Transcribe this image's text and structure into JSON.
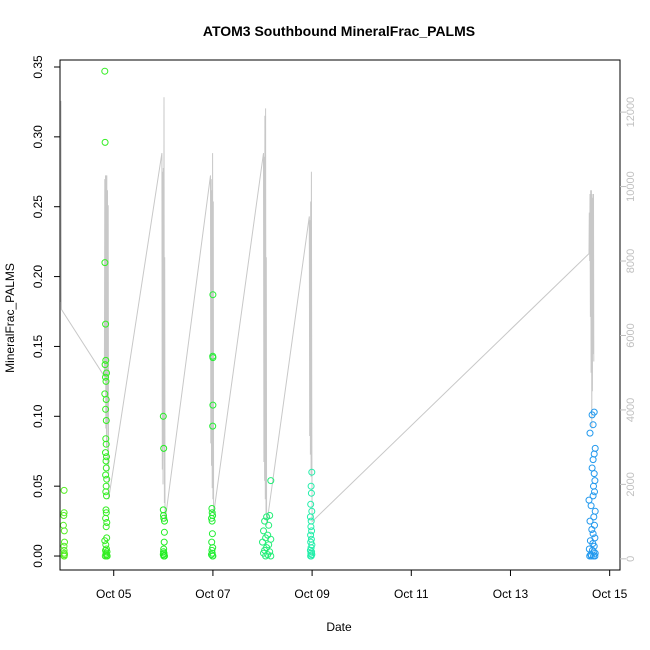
{
  "chart_data": {
    "type": "scatter",
    "title": "ATOM3 Southbound MineralFrac_PALMS",
    "xlabel": "Date",
    "ylabel": "MineralFrac_PALMS",
    "x_ticks": [
      "Oct 05",
      "Oct 07",
      "Oct 09",
      "Oct 11",
      "Oct 13",
      "Oct 15"
    ],
    "x_range": [
      "Oct 03 22:00",
      "Oct 15 05:00"
    ],
    "y_ticks": [
      0.0,
      0.05,
      0.1,
      0.15,
      0.2,
      0.25,
      0.3,
      0.35
    ],
    "y_tick_labels": [
      "0.00",
      "0.05",
      "0.10",
      "0.15",
      "0.20",
      "0.25",
      "0.30",
      "0.35"
    ],
    "ylim": [
      -0.01,
      0.355
    ],
    "y2_ticks": [
      0,
      2000,
      4000,
      6000,
      8000,
      10000,
      12000
    ],
    "y2_tick_labels": [
      "0",
      "2000",
      "4000",
      "6000",
      "8000",
      "10000",
      "12000"
    ],
    "y2lim": [
      -300,
      13400
    ],
    "y2_color": "#c0c0c0",
    "grid": false,
    "series": [
      {
        "color": "#55ee22",
        "points": [
          [
            "Oct 04 00:00",
            0.047
          ],
          [
            "Oct 04 00:00",
            0.031
          ],
          [
            "Oct 03 23:50",
            0.029
          ],
          [
            "Oct 03 23:40",
            0.022
          ],
          [
            "Oct 04 00:05",
            0.018
          ],
          [
            "Oct 04 00:10",
            0.01
          ],
          [
            "Oct 03 23:55",
            0.007
          ],
          [
            "Oct 04 00:00",
            0.004
          ],
          [
            "Oct 04 00:05",
            0.002
          ],
          [
            "Oct 04 00:10",
            0.001
          ],
          [
            "Oct 04 00:02",
            0.0
          ],
          [
            "Oct 03 23:58",
            0.0
          ]
        ]
      },
      {
        "color": "#33ee22",
        "points": [
          [
            "Oct 04 19:40",
            0.347
          ],
          [
            "Oct 04 19:50",
            0.296
          ],
          [
            "Oct 04 19:45",
            0.21
          ],
          [
            "Oct 04 20:05",
            0.166
          ],
          [
            "Oct 04 19:50",
            0.137
          ],
          [
            "Oct 04 20:10",
            0.14
          ],
          [
            "Oct 04 20:30",
            0.131
          ],
          [
            "Oct 04 20:00",
            0.128
          ],
          [
            "Oct 04 20:15",
            0.125
          ],
          [
            "Oct 04 19:40",
            0.116
          ],
          [
            "Oct 04 20:20",
            0.112
          ],
          [
            "Oct 04 20:05",
            0.105
          ],
          [
            "Oct 04 20:25",
            0.097
          ],
          [
            "Oct 04 20:10",
            0.084
          ],
          [
            "Oct 04 20:20",
            0.08
          ],
          [
            "Oct 04 20:00",
            0.074
          ],
          [
            "Oct 04 20:30",
            0.071
          ],
          [
            "Oct 04 20:15",
            0.068
          ],
          [
            "Oct 04 20:25",
            0.063
          ],
          [
            "Oct 04 20:05",
            0.058
          ],
          [
            "Oct 04 20:35",
            0.055
          ],
          [
            "Oct 04 20:20",
            0.05
          ],
          [
            "Oct 04 20:10",
            0.046
          ],
          [
            "Oct 04 20:30",
            0.043
          ],
          [
            "Oct 04 20:15",
            0.033
          ],
          [
            "Oct 04 20:25",
            0.031
          ],
          [
            "Oct 04 20:05",
            0.027
          ],
          [
            "Oct 04 20:40",
            0.024
          ],
          [
            "Oct 04 20:20",
            0.021
          ],
          [
            "Oct 04 19:40",
            0.011
          ],
          [
            "Oct 04 20:35",
            0.013
          ],
          [
            "Oct 04 20:10",
            0.008
          ],
          [
            "Oct 04 20:30",
            0.005
          ],
          [
            "Oct 04 20:00",
            0.004
          ],
          [
            "Oct 04 20:45",
            0.003
          ],
          [
            "Oct 04 20:15",
            0.002
          ],
          [
            "Oct 04 20:25",
            0.001
          ],
          [
            "Oct 04 19:55",
            0.0
          ],
          [
            "Oct 04 20:35",
            0.0
          ],
          [
            "Oct 04 20:50",
            0.0
          ]
        ]
      },
      {
        "color": "#22ee22",
        "points": [
          [
            "Oct 06 00:00",
            0.1
          ],
          [
            "Oct 06 00:10",
            0.077
          ],
          [
            "Oct 06 00:00",
            0.033
          ],
          [
            "Oct 06 00:05",
            0.029
          ],
          [
            "Oct 06 00:15",
            0.027
          ],
          [
            "Oct 06 00:35",
            0.025
          ],
          [
            "Oct 06 00:30",
            0.017
          ],
          [
            "Oct 06 00:25",
            0.01
          ],
          [
            "Oct 06 00:10",
            0.005
          ],
          [
            "Oct 06 00:05",
            0.003
          ],
          [
            "Oct 06 00:20",
            0.002
          ],
          [
            "Oct 06 00:00",
            0.001
          ],
          [
            "Oct 06 00:15",
            0.0
          ],
          [
            "Oct 06 00:25",
            0.0
          ],
          [
            "Oct 06 00:35",
            0.0
          ]
        ]
      },
      {
        "color": "#22ee33",
        "points": [
          [
            "Oct 07 00:00",
            0.187
          ],
          [
            "Oct 06 23:55",
            0.143
          ],
          [
            "Oct 07 00:00",
            0.142
          ],
          [
            "Oct 07 00:00",
            0.108
          ],
          [
            "Oct 06 23:55",
            0.093
          ],
          [
            "Oct 06 23:30",
            0.034
          ],
          [
            "Oct 06 23:40",
            0.031
          ],
          [
            "Oct 06 23:50",
            0.029
          ],
          [
            "Oct 06 23:20",
            0.027
          ],
          [
            "Oct 06 23:35",
            0.025
          ],
          [
            "Oct 06 23:45",
            0.016
          ],
          [
            "Oct 06 23:25",
            0.01
          ],
          [
            "Oct 06 23:55",
            0.006
          ],
          [
            "Oct 06 23:30",
            0.004
          ],
          [
            "Oct 06 23:40",
            0.002
          ],
          [
            "Oct 06 23:20",
            0.001
          ],
          [
            "Oct 06 23:50",
            0.0
          ],
          [
            "Oct 07 00:00",
            0.0
          ]
        ]
      },
      {
        "color": "#22ee77",
        "points": [
          [
            "Oct 08 04:00",
            0.054
          ],
          [
            "Oct 08 03:30",
            0.029
          ],
          [
            "Oct 08 02:00",
            0.028
          ],
          [
            "Oct 08 01:00",
            0.025
          ],
          [
            "Oct 08 03:00",
            0.022
          ],
          [
            "Oct 08 00:30",
            0.018
          ],
          [
            "Oct 08 02:30",
            0.015
          ],
          [
            "Oct 08 01:30",
            0.013
          ],
          [
            "Oct 08 04:00",
            0.012
          ],
          [
            "Oct 08 00:00",
            0.01
          ],
          [
            "Oct 08 03:00",
            0.008
          ],
          [
            "Oct 08 02:00",
            0.006
          ],
          [
            "Oct 08 01:00",
            0.004
          ],
          [
            "Oct 08 03:30",
            0.003
          ],
          [
            "Oct 08 00:30",
            0.002
          ],
          [
            "Oct 08 02:30",
            0.001
          ],
          [
            "Oct 08 04:00",
            0.0
          ],
          [
            "Oct 08 01:30",
            0.0
          ]
        ]
      },
      {
        "color": "#22eeaa",
        "points": [
          [
            "Oct 08 23:50",
            0.06
          ],
          [
            "Oct 08 23:30",
            0.05
          ],
          [
            "Oct 08 23:40",
            0.045
          ],
          [
            "Oct 08 23:20",
            0.037
          ],
          [
            "Oct 08 23:50",
            0.032
          ],
          [
            "Oct 08 23:10",
            0.028
          ],
          [
            "Oct 08 23:35",
            0.025
          ],
          [
            "Oct 08 23:25",
            0.021
          ],
          [
            "Oct 08 23:45",
            0.018
          ],
          [
            "Oct 08 23:15",
            0.015
          ],
          [
            "Oct 08 23:40",
            0.012
          ],
          [
            "Oct 08 23:20",
            0.01
          ],
          [
            "Oct 08 23:55",
            0.008
          ],
          [
            "Oct 08 23:30",
            0.006
          ],
          [
            "Oct 08 23:10",
            0.004
          ],
          [
            "Oct 08 23:45",
            0.003
          ],
          [
            "Oct 08 23:25",
            0.002
          ],
          [
            "Oct 08 23:50",
            0.001
          ],
          [
            "Oct 08 23:35",
            0.0
          ],
          [
            "Oct 08 23:15",
            0.0
          ]
        ]
      },
      {
        "color": "#2299ee",
        "points": [
          [
            "Oct 14 16:30",
            0.103
          ],
          [
            "Oct 14 15:30",
            0.101
          ],
          [
            "Oct 14 16:00",
            0.094
          ],
          [
            "Oct 14 14:30",
            0.088
          ],
          [
            "Oct 14 17:00",
            0.077
          ],
          [
            "Oct 14 16:30",
            0.073
          ],
          [
            "Oct 14 16:00",
            0.069
          ],
          [
            "Oct 14 15:30",
            0.063
          ],
          [
            "Oct 14 16:30",
            0.059
          ],
          [
            "Oct 14 16:50",
            0.054
          ],
          [
            "Oct 14 16:10",
            0.05
          ],
          [
            "Oct 14 16:40",
            0.046
          ],
          [
            "Oct 14 16:00",
            0.043
          ],
          [
            "Oct 14 14:00",
            0.04
          ],
          [
            "Oct 14 15:00",
            0.036
          ],
          [
            "Oct 14 17:00",
            0.032
          ],
          [
            "Oct 14 16:20",
            0.028
          ],
          [
            "Oct 14 14:30",
            0.025
          ],
          [
            "Oct 14 16:40",
            0.022
          ],
          [
            "Oct 14 15:20",
            0.019
          ],
          [
            "Oct 14 16:00",
            0.016
          ],
          [
            "Oct 14 16:50",
            0.013
          ],
          [
            "Oct 14 14:40",
            0.011
          ],
          [
            "Oct 14 15:50",
            0.009
          ],
          [
            "Oct 14 16:30",
            0.007
          ],
          [
            "Oct 14 14:10",
            0.005
          ],
          [
            "Oct 14 15:40",
            0.004
          ],
          [
            "Oct 14 16:20",
            0.003
          ],
          [
            "Oct 14 17:00",
            0.002
          ],
          [
            "Oct 14 14:50",
            0.001
          ],
          [
            "Oct 14 15:10",
            0.0
          ],
          [
            "Oct 14 16:10",
            0.0
          ],
          [
            "Oct 14 16:50",
            0.0
          ],
          [
            "Oct 14 14:20",
            0.0
          ]
        ]
      }
    ],
    "secondary_line": {
      "color": "#c8c8c8",
      "points": [
        [
          "Oct 03 22:20",
          6900
        ],
        [
          "Oct 03 22:30",
          12300
        ],
        [
          "Oct 03 22:40",
          6700
        ],
        [
          "Oct 04 19:30",
          4900
        ],
        [
          "Oct 04 19:40",
          10200
        ],
        [
          "Oct 04 19:50",
          4800
        ],
        [
          "Oct 04 20:00",
          10300
        ],
        [
          "Oct 04 20:10",
          3500
        ],
        [
          "Oct 04 20:20",
          10300
        ],
        [
          "Oct 04 20:30",
          3000
        ],
        [
          "Oct 04 20:40",
          10300
        ],
        [
          "Oct 04 20:50",
          3600
        ],
        [
          "Oct 04 21:00",
          9900
        ],
        [
          "Oct 04 21:10",
          2500
        ],
        [
          "Oct 04 21:20",
          9500
        ],
        [
          "Oct 04 21:30",
          1600
        ],
        [
          "Oct 05 23:20",
          10900
        ],
        [
          "Oct 05 23:30",
          2400
        ],
        [
          "Oct 05 23:40",
          10400
        ],
        [
          "Oct 05 23:50",
          2000
        ],
        [
          "Oct 06 00:00",
          10500
        ],
        [
          "Oct 06 00:10",
          3000
        ],
        [
          "Oct 06 00:20",
          12400
        ],
        [
          "Oct 06 00:30",
          1500
        ],
        [
          "Oct 06 00:40",
          8100
        ],
        [
          "Oct 06 00:50",
          1000
        ],
        [
          "Oct 06 22:50",
          10300
        ],
        [
          "Oct 06 23:00",
          3100
        ],
        [
          "Oct 06 23:10",
          10200
        ],
        [
          "Oct 06 23:20",
          2500
        ],
        [
          "Oct 06 23:30",
          9900
        ],
        [
          "Oct 06 23:40",
          1900
        ],
        [
          "Oct 06 23:50",
          10900
        ],
        [
          "Oct 07 00:00",
          1600
        ],
        [
          "Oct 07 00:10",
          9600
        ],
        [
          "Oct 07 00:20",
          1200
        ],
        [
          "Oct 08 00:30",
          10900
        ],
        [
          "Oct 08 00:40",
          2600
        ],
        [
          "Oct 08 00:50",
          10800
        ],
        [
          "Oct 08 01:00",
          2100
        ],
        [
          "Oct 08 01:10",
          11900
        ],
        [
          "Oct 08 01:20",
          1600
        ],
        [
          "Oct 08 01:30",
          12100
        ],
        [
          "Oct 08 01:40",
          1200
        ],
        [
          "Oct 08 01:50",
          8100
        ],
        [
          "Oct 08 02:00",
          900
        ],
        [
          "Oct 08 22:40",
          9200
        ],
        [
          "Oct 08 22:50",
          3300
        ],
        [
          "Oct 08 23:00",
          9100
        ],
        [
          "Oct 08 23:10",
          2800
        ],
        [
          "Oct 08 23:20",
          9600
        ],
        [
          "Oct 08 23:30",
          2200
        ],
        [
          "Oct 08 23:40",
          10400
        ],
        [
          "Oct 08 23:50",
          3500
        ],
        [
          "Oct 09 00:00",
          1000
        ],
        [
          "Oct 14 14:00",
          8200
        ],
        [
          "Oct 14 14:10",
          9300
        ],
        [
          "Oct 14 14:20",
          8000
        ],
        [
          "Oct 14 14:30",
          9800
        ],
        [
          "Oct 14 14:40",
          6500
        ],
        [
          "Oct 14 14:50",
          9900
        ],
        [
          "Oct 14 15:00",
          5000
        ],
        [
          "Oct 14 15:10",
          9900
        ],
        [
          "Oct 14 15:20",
          3500
        ],
        [
          "Oct 14 15:30",
          9800
        ],
        [
          "Oct 14 15:40",
          4500
        ],
        [
          "Oct 14 15:50",
          9700
        ],
        [
          "Oct 14 16:00",
          5500
        ],
        [
          "Oct 14 16:10",
          9800
        ],
        [
          "Oct 14 16:20",
          5300
        ]
      ]
    }
  }
}
